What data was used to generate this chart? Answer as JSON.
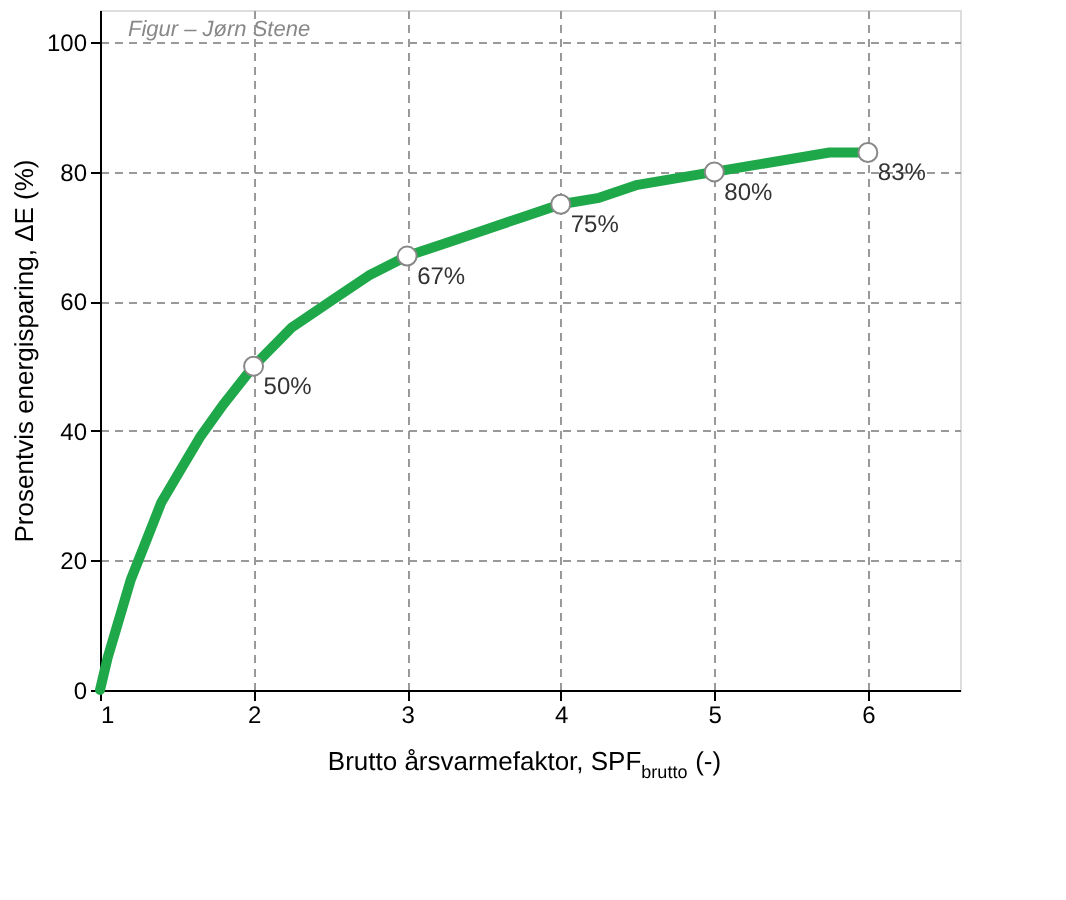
{
  "chart_data": {
    "type": "line",
    "xlabel": "Brutto årsvarmefaktor, SPF$_{brutto}$ (-)",
    "ylabel": "Prosentvis energisparing, ΔE (%)",
    "annotations": [
      "Figur – Jørn Stene"
    ],
    "series": [
      {
        "color": "#1fa84a",
        "marker": "none",
        "x": [
          1,
          1.05,
          1.1,
          1.2,
          1.3,
          1.4,
          1.5,
          1.65,
          1.8,
          2,
          2.25,
          2.5,
          2.75,
          3,
          3.25,
          3.5,
          3.75,
          4,
          4.25,
          4.5,
          4.75,
          5,
          5.25,
          5.5,
          5.75,
          6
        ],
        "values": [
          0,
          5,
          9,
          17,
          23,
          29,
          33,
          39,
          44,
          50,
          56,
          60,
          64,
          67,
          69,
          71,
          73,
          75,
          76,
          78,
          79,
          80,
          81,
          82,
          83,
          83
        ]
      },
      {
        "type": "scatter",
        "color": "#ffffff",
        "marker": "circle",
        "x": [
          2,
          3,
          4,
          5,
          6
        ],
        "values": [
          50,
          67,
          75,
          80,
          83
        ],
        "value_labels": [
          "50%",
          "67%",
          "75%",
          "80%",
          "83%"
        ]
      }
    ],
    "xlim": [
      1,
      6.6
    ],
    "ylim": [
      0,
      105
    ],
    "xticks": [
      1,
      2,
      3,
      4,
      5,
      6
    ],
    "yticks": [
      0,
      20,
      40,
      60,
      80,
      100
    ],
    "grid": true
  }
}
